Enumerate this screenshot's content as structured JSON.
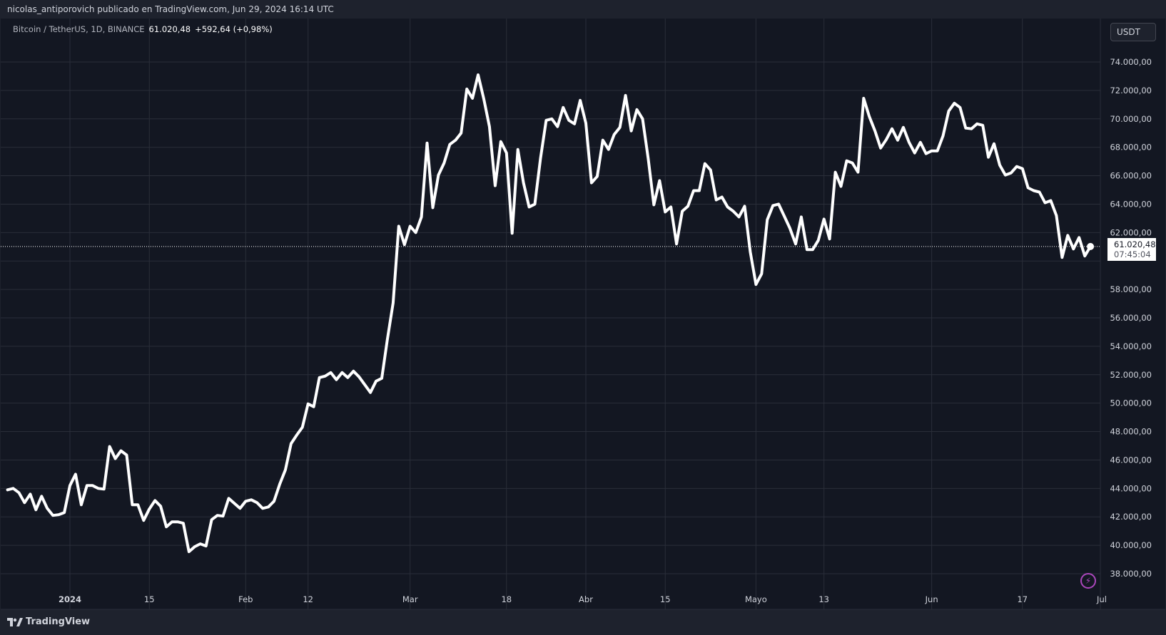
{
  "header": {
    "publisher_line": "nicolas_antiporovich publicado en TradingView.com, Jun 29, 2024 16:14 UTC"
  },
  "symbol": {
    "description": "Bitcoin / TetherUS, 1D, BINANCE",
    "last_price": "61.020,48",
    "change": "+592,64 (+0,98%)"
  },
  "currency_button": {
    "label": "USDT"
  },
  "price_tag": {
    "price": "61.020,48",
    "countdown": "07:45:04"
  },
  "footer": {
    "brand": "TradingView"
  },
  "colors": {
    "background": "#131722",
    "grid": "#2a2e39",
    "line": "#ffffff",
    "text": "#d1d4dc",
    "accent": "#ab47bc"
  },
  "icons": {
    "brand_logo": "tradingview-logo-icon",
    "alert": "lightning-icon"
  },
  "chart_data": {
    "type": "line",
    "title": "",
    "xlabel": "",
    "ylabel": "",
    "x_range": [
      "2023-12-21",
      "2024-07-01"
    ],
    "ylim": [
      37000,
      75500
    ],
    "grid": true,
    "y_ticks": [
      38000,
      40000,
      42000,
      44000,
      46000,
      48000,
      50000,
      52000,
      54000,
      56000,
      58000,
      60000,
      62000,
      64000,
      66000,
      68000,
      70000,
      72000,
      74000
    ],
    "y_tick_labels": [
      "38.000,00",
      "40.000,00",
      "42.000,00",
      "44.000,00",
      "46.000,00",
      "48.000,00",
      "50.000,00",
      "52.000,00",
      "54.000,00",
      "56.000,00",
      "58.000,00",
      "",
      "62.000,00",
      "64.000,00",
      "66.000,00",
      "68.000,00",
      "70.000,00",
      "72.000,00",
      "74.000,00"
    ],
    "x_ticks": [
      {
        "label": "2024",
        "date": "2024-01-01",
        "bold": true
      },
      {
        "label": "15",
        "date": "2024-01-15"
      },
      {
        "label": "Feb",
        "date": "2024-02-01"
      },
      {
        "label": "12",
        "date": "2024-02-12"
      },
      {
        "label": "Mar",
        "date": "2024-03-01"
      },
      {
        "label": "18",
        "date": "2024-03-18"
      },
      {
        "label": "Abr",
        "date": "2024-04-01"
      },
      {
        "label": "15",
        "date": "2024-04-15"
      },
      {
        "label": "Mayo",
        "date": "2024-05-01"
      },
      {
        "label": "13",
        "date": "2024-05-13"
      },
      {
        "label": "Jun",
        "date": "2024-06-01"
      },
      {
        "label": "17",
        "date": "2024-06-17"
      },
      {
        "label": "Jul",
        "date": "2024-07-01"
      }
    ],
    "current_value": 61020.48,
    "series": [
      {
        "values": [
          [
            "2023-12-21",
            43900
          ],
          [
            "2023-12-22",
            44000
          ],
          [
            "2023-12-23",
            43700
          ],
          [
            "2023-12-24",
            43000
          ],
          [
            "2023-12-25",
            43600
          ],
          [
            "2023-12-26",
            42500
          ],
          [
            "2023-12-27",
            43450
          ],
          [
            "2023-12-28",
            42600
          ],
          [
            "2023-12-29",
            42100
          ],
          [
            "2023-12-30",
            42150
          ],
          [
            "2023-12-31",
            42300
          ],
          [
            "2024-01-01",
            44200
          ],
          [
            "2024-01-02",
            45000
          ],
          [
            "2024-01-03",
            42850
          ],
          [
            "2024-01-04",
            44200
          ],
          [
            "2024-01-05",
            44200
          ],
          [
            "2024-01-06",
            44000
          ],
          [
            "2024-01-07",
            43950
          ],
          [
            "2024-01-08",
            46950
          ],
          [
            "2024-01-09",
            46100
          ],
          [
            "2024-01-10",
            46650
          ],
          [
            "2024-01-11",
            46350
          ],
          [
            "2024-01-12",
            42850
          ],
          [
            "2024-01-13",
            42850
          ],
          [
            "2024-01-14",
            41750
          ],
          [
            "2024-01-15",
            42550
          ],
          [
            "2024-01-16",
            43150
          ],
          [
            "2024-01-17",
            42750
          ],
          [
            "2024-01-18",
            41300
          ],
          [
            "2024-01-19",
            41650
          ],
          [
            "2024-01-20",
            41650
          ],
          [
            "2024-01-21",
            41550
          ],
          [
            "2024-01-22",
            39550
          ],
          [
            "2024-01-23",
            39900
          ],
          [
            "2024-01-24",
            40100
          ],
          [
            "2024-01-25",
            39950
          ],
          [
            "2024-01-26",
            41800
          ],
          [
            "2024-01-27",
            42100
          ],
          [
            "2024-01-28",
            42050
          ],
          [
            "2024-01-29",
            43300
          ],
          [
            "2024-01-30",
            42950
          ],
          [
            "2024-01-31",
            42600
          ],
          [
            "2024-02-01",
            43100
          ],
          [
            "2024-02-02",
            43200
          ],
          [
            "2024-02-03",
            43000
          ],
          [
            "2024-02-04",
            42600
          ],
          [
            "2024-02-05",
            42700
          ],
          [
            "2024-02-06",
            43100
          ],
          [
            "2024-02-07",
            44300
          ],
          [
            "2024-02-08",
            45300
          ],
          [
            "2024-02-09",
            47150
          ],
          [
            "2024-02-10",
            47750
          ],
          [
            "2024-02-11",
            48300
          ],
          [
            "2024-02-12",
            49950
          ],
          [
            "2024-02-13",
            49750
          ],
          [
            "2024-02-14",
            51800
          ],
          [
            "2024-02-15",
            51900
          ],
          [
            "2024-02-16",
            52150
          ],
          [
            "2024-02-17",
            51650
          ],
          [
            "2024-02-18",
            52150
          ],
          [
            "2024-02-19",
            51800
          ],
          [
            "2024-02-20",
            52250
          ],
          [
            "2024-02-21",
            51850
          ],
          [
            "2024-02-22",
            51300
          ],
          [
            "2024-02-23",
            50750
          ],
          [
            "2024-02-24",
            51550
          ],
          [
            "2024-02-25",
            51750
          ],
          [
            "2024-02-26",
            54500
          ],
          [
            "2024-02-27",
            57050
          ],
          [
            "2024-02-28",
            62450
          ],
          [
            "2024-02-29",
            61150
          ],
          [
            "2024-03-01",
            62450
          ],
          [
            "2024-03-02",
            62000
          ],
          [
            "2024-03-03",
            63100
          ],
          [
            "2024-03-04",
            68300
          ],
          [
            "2024-03-05",
            63750
          ],
          [
            "2024-03-06",
            66050
          ],
          [
            "2024-03-07",
            66900
          ],
          [
            "2024-03-08",
            68200
          ],
          [
            "2024-03-09",
            68500
          ],
          [
            "2024-03-10",
            69000
          ],
          [
            "2024-03-11",
            72100
          ],
          [
            "2024-03-12",
            71450
          ],
          [
            "2024-03-13",
            73100
          ],
          [
            "2024-03-14",
            71400
          ],
          [
            "2024-03-15",
            69450
          ],
          [
            "2024-03-16",
            65300
          ],
          [
            "2024-03-17",
            68400
          ],
          [
            "2024-03-18",
            67600
          ],
          [
            "2024-03-19",
            61950
          ],
          [
            "2024-03-20",
            67850
          ],
          [
            "2024-03-21",
            65500
          ],
          [
            "2024-03-22",
            63800
          ],
          [
            "2024-03-23",
            64000
          ],
          [
            "2024-03-24",
            67200
          ],
          [
            "2024-03-25",
            69900
          ],
          [
            "2024-03-26",
            70000
          ],
          [
            "2024-03-27",
            69450
          ],
          [
            "2024-03-28",
            70800
          ],
          [
            "2024-03-29",
            69900
          ],
          [
            "2024-03-30",
            69650
          ],
          [
            "2024-03-31",
            71300
          ],
          [
            "2024-04-01",
            69700
          ],
          [
            "2024-04-02",
            65500
          ],
          [
            "2024-04-03",
            65950
          ],
          [
            "2024-04-04",
            68500
          ],
          [
            "2024-04-05",
            67850
          ],
          [
            "2024-04-06",
            68900
          ],
          [
            "2024-04-07",
            69400
          ],
          [
            "2024-04-08",
            71650
          ],
          [
            "2024-04-09",
            69150
          ],
          [
            "2024-04-10",
            70650
          ],
          [
            "2024-04-11",
            70000
          ],
          [
            "2024-04-12",
            67200
          ],
          [
            "2024-04-13",
            63950
          ],
          [
            "2024-04-14",
            65650
          ],
          [
            "2024-04-15",
            63450
          ],
          [
            "2024-04-16",
            63800
          ],
          [
            "2024-04-17",
            61200
          ],
          [
            "2024-04-18",
            63500
          ],
          [
            "2024-04-19",
            63850
          ],
          [
            "2024-04-20",
            64950
          ],
          [
            "2024-04-21",
            64950
          ],
          [
            "2024-04-22",
            66850
          ],
          [
            "2024-04-23",
            66400
          ],
          [
            "2024-04-24",
            64300
          ],
          [
            "2024-04-25",
            64500
          ],
          [
            "2024-04-26",
            63800
          ],
          [
            "2024-04-27",
            63500
          ],
          [
            "2024-04-28",
            63100
          ],
          [
            "2024-04-29",
            63850
          ],
          [
            "2024-04-30",
            60650
          ],
          [
            "2024-05-01",
            58350
          ],
          [
            "2024-05-02",
            59100
          ],
          [
            "2024-05-03",
            62900
          ],
          [
            "2024-05-04",
            63900
          ],
          [
            "2024-05-05",
            64000
          ],
          [
            "2024-05-06",
            63150
          ],
          [
            "2024-05-07",
            62300
          ],
          [
            "2024-05-08",
            61200
          ],
          [
            "2024-05-09",
            63100
          ],
          [
            "2024-05-10",
            60800
          ],
          [
            "2024-05-11",
            60800
          ],
          [
            "2024-05-12",
            61450
          ],
          [
            "2024-05-13",
            62950
          ],
          [
            "2024-05-14",
            61550
          ],
          [
            "2024-05-15",
            66250
          ],
          [
            "2024-05-16",
            65250
          ],
          [
            "2024-05-17",
            67050
          ],
          [
            "2024-05-18",
            66900
          ],
          [
            "2024-05-19",
            66250
          ],
          [
            "2024-05-20",
            71450
          ],
          [
            "2024-05-21",
            70150
          ],
          [
            "2024-05-22",
            69150
          ],
          [
            "2024-05-23",
            67950
          ],
          [
            "2024-05-24",
            68550
          ],
          [
            "2024-05-25",
            69300
          ],
          [
            "2024-05-26",
            68500
          ],
          [
            "2024-05-27",
            69400
          ],
          [
            "2024-05-28",
            68350
          ],
          [
            "2024-05-29",
            67600
          ],
          [
            "2024-05-30",
            68350
          ],
          [
            "2024-05-31",
            67550
          ],
          [
            "2024-06-01",
            67750
          ],
          [
            "2024-06-02",
            67750
          ],
          [
            "2024-06-03",
            68800
          ],
          [
            "2024-06-04",
            70550
          ],
          [
            "2024-06-05",
            71100
          ],
          [
            "2024-06-06",
            70800
          ],
          [
            "2024-06-07",
            69350
          ],
          [
            "2024-06-08",
            69300
          ],
          [
            "2024-06-09",
            69650
          ],
          [
            "2024-06-10",
            69550
          ],
          [
            "2024-06-11",
            67300
          ],
          [
            "2024-06-12",
            68250
          ],
          [
            "2024-06-13",
            66750
          ],
          [
            "2024-06-14",
            66050
          ],
          [
            "2024-06-15",
            66200
          ],
          [
            "2024-06-16",
            66650
          ],
          [
            "2024-06-17",
            66500
          ],
          [
            "2024-06-18",
            65150
          ],
          [
            "2024-06-19",
            64950
          ],
          [
            "2024-06-20",
            64850
          ],
          [
            "2024-06-21",
            64100
          ],
          [
            "2024-06-22",
            64250
          ],
          [
            "2024-06-23",
            63200
          ],
          [
            "2024-06-24",
            60250
          ],
          [
            "2024-06-25",
            61800
          ],
          [
            "2024-06-26",
            60850
          ],
          [
            "2024-06-27",
            61650
          ],
          [
            "2024-06-28",
            60350
          ],
          [
            "2024-06-29",
            61020
          ]
        ]
      }
    ]
  }
}
